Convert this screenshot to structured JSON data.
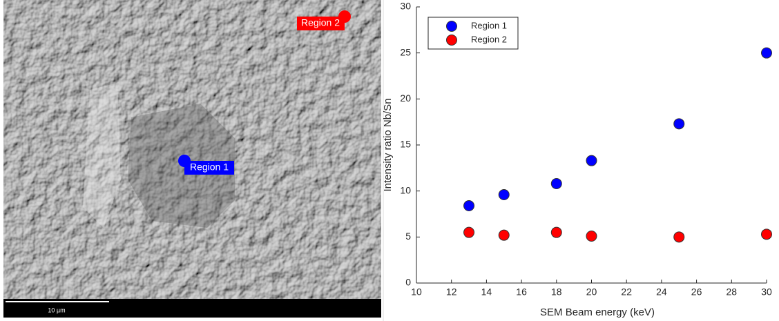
{
  "image": {
    "regions": [
      "Region 1",
      "Region 2"
    ],
    "scale_bar": "10 µm"
  },
  "chart_data": {
    "type": "scatter",
    "x_label": "SEM Beam energy (keV)",
    "y_label": "Intensity ratio Nb/Sn",
    "x": [
      13,
      15,
      18,
      20,
      25,
      30
    ],
    "series": [
      {
        "name": "Region 1",
        "color": "#0000ff",
        "values": [
          8.4,
          9.6,
          10.8,
          13.3,
          17.3,
          25.0
        ]
      },
      {
        "name": "Region 2",
        "color": "#ff0000",
        "values": [
          5.5,
          5.2,
          5.5,
          5.1,
          5.0,
          5.3
        ]
      }
    ],
    "xlim": [
      10,
      30
    ],
    "xticks": [
      10,
      12,
      14,
      16,
      18,
      20,
      22,
      24,
      26,
      28,
      30
    ],
    "ylim": [
      0,
      30
    ],
    "yticks": [
      0,
      5,
      10,
      15,
      20,
      25,
      30
    ],
    "legend": "upper left"
  }
}
